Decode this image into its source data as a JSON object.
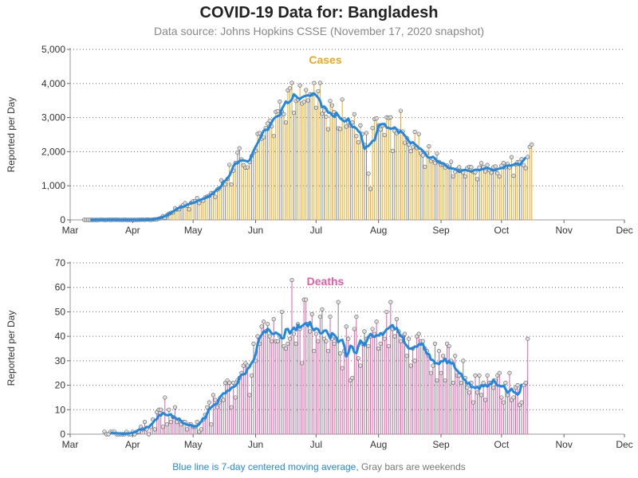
{
  "title": "COVID-19 Data for: Bangladesh",
  "subtitle": "Data source: Johns Hopkins CSSE (November 17, 2020 snapshot)",
  "footnote": {
    "blue_text": "Blue line is 7-day centered moving average,",
    "gray_text": "Gray bars are weekends"
  },
  "colors": {
    "cases": "#f2a71b",
    "deaths": "#e85aa6",
    "weekend": "#888888",
    "moving_average": "#1e88e5",
    "marker_fill": "#dddddd"
  },
  "chart_data": [
    {
      "type": "bar",
      "panel_label": "Cases",
      "ylabel": "Reported per Day",
      "xlabel": "",
      "ylim": [
        0,
        5000
      ],
      "yticks": [
        0,
        1000,
        2000,
        3000,
        4000,
        5000
      ],
      "ytick_labels": [
        "0",
        "1,000",
        "2,000",
        "3,000",
        "4,000",
        "5,000"
      ],
      "xticks": [
        "Mar",
        "Apr",
        "May",
        "Jun",
        "Jul",
        "Aug",
        "Sep",
        "Oct",
        "Nov",
        "Dec"
      ],
      "date_range": [
        "2020-03-01",
        "2020-12-01"
      ],
      "grid": "horizontal-dotted",
      "series": [
        {
          "role": "daily",
          "start_date": "2020-03-08",
          "values": [
            3,
            0,
            0,
            0,
            0,
            0,
            0,
            2,
            4,
            4,
            0,
            0,
            7,
            0,
            6,
            3,
            6,
            3,
            2,
            0,
            6,
            0,
            0,
            1,
            0,
            0,
            2,
            3,
            6,
            9,
            2,
            13,
            9,
            0,
            11,
            17,
            18,
            35,
            54,
            112,
            58,
            139,
            182,
            209,
            219,
            341,
            306,
            312,
            390,
            434,
            492,
            414,
            309,
            503,
            549,
            552,
            641,
            497,
            571,
            564,
            665,
            688,
            706,
            790,
            786,
            674,
            887,
            930,
            1162,
            1034,
            1041,
            1202,
            1617,
            1041,
            1446,
            1674,
            1975,
            2101,
            1774,
            1606,
            1532,
            1541,
            1694,
            1873,
            1975,
            2029,
            2523,
            2545,
            2381,
            2423,
            2695,
            2828,
            2911,
            2743,
            2460,
            3171,
            3190,
            3471,
            3187,
            3099,
            2856,
            3803,
            3862,
            4019,
            3141,
            3489,
            3531,
            3946,
            3412,
            3462,
            3809,
            3504,
            3682,
            3682,
            4014,
            3288,
            3775,
            4019,
            3114,
            3201,
            3027,
            2661,
            3489,
            3360,
            3163,
            3099,
            2686,
            2666,
            3533,
            2949,
            2733,
            2856,
            2772,
            2856,
            3099,
            2459,
            2275,
            2772,
            2520,
            2199,
            2548,
            1356,
            908,
            2695,
            2958,
            2977,
            2772,
            2654,
            2766,
            2487,
            3009,
            2994,
            3009,
            2024,
            2611,
            2545,
            2611,
            3200,
            2595,
            2265,
            2401,
            2211,
            2015,
            2131,
            2582,
            2106,
            2519,
            1950,
            1892,
            1557,
            1959,
            2158,
            1724,
            1792,
            1666,
            1950,
            1701,
            1615,
            1636,
            1537,
            1593,
            1544,
            1705,
            1275,
            1406,
            1488,
            1545,
            1439,
            1383,
            1275,
            1520,
            1557,
            1545,
            1407,
            1396,
            1195,
            1540,
            1664,
            1548,
            1421,
            1610,
            1458,
            1384,
            1542,
            1568,
            1365,
            1275,
            1590,
            1672,
            1545,
            1640,
            1540,
            1840,
            1293,
            1624,
            1694,
            1700,
            1782,
            1605,
            1519,
            1845,
            2139,
            2212
          ]
        }
      ]
    },
    {
      "type": "bar",
      "panel_label": "Deaths",
      "ylabel": "Reported per Day",
      "xlabel": "",
      "ylim": [
        0,
        70
      ],
      "yticks": [
        0,
        10,
        20,
        30,
        40,
        50,
        60,
        70
      ],
      "ytick_labels": [
        "0",
        "10",
        "20",
        "30",
        "40",
        "50",
        "60",
        "70"
      ],
      "xticks": [
        "Mar",
        "Apr",
        "May",
        "Jun",
        "Jul",
        "Aug",
        "Sep",
        "Oct",
        "Nov",
        "Dec"
      ],
      "date_range": [
        "2020-03-01",
        "2020-12-01"
      ],
      "grid": "horizontal-dotted",
      "series": [
        {
          "role": "daily",
          "start_date": "2020-03-18",
          "values": [
            1,
            0,
            0,
            1,
            1,
            1,
            0,
            0,
            0,
            0,
            0,
            1,
            0,
            0,
            1,
            0,
            1,
            1,
            3,
            2,
            5,
            2,
            0,
            3,
            6,
            2,
            9,
            10,
            10,
            3,
            15,
            4,
            10,
            5,
            7,
            11,
            5,
            6,
            4,
            5,
            5,
            2,
            4,
            4,
            3,
            3,
            5,
            1,
            2,
            6,
            8,
            11,
            13,
            4,
            16,
            14,
            11,
            13,
            15,
            14,
            21,
            22,
            21,
            11,
            21,
            15,
            22,
            23,
            25,
            28,
            29,
            28,
            16,
            24,
            37,
            30,
            40,
            37,
            44,
            46,
            42,
            45,
            40,
            38,
            47,
            38,
            38,
            40,
            50,
            36,
            35,
            37,
            39,
            63,
            41,
            37,
            45,
            43,
            29,
            55,
            55,
            45,
            42,
            49,
            34,
            41,
            38,
            48,
            51,
            39,
            38,
            34,
            48,
            39,
            37,
            39,
            54,
            33,
            27,
            34,
            44,
            39,
            22,
            23,
            43,
            48,
            31,
            28,
            37,
            42,
            39,
            36,
            40,
            43,
            41,
            46,
            35,
            37,
            41,
            39,
            50,
            36,
            54,
            43,
            40,
            47,
            42,
            38,
            40,
            41,
            32,
            39,
            28,
            35,
            30,
            40,
            41,
            38,
            38,
            35,
            34,
            32,
            25,
            28,
            37,
            22,
            34,
            25,
            32,
            22,
            37,
            36,
            30,
            21,
            32,
            24,
            24,
            21,
            30,
            23,
            19,
            17,
            21,
            13,
            24,
            17,
            24,
            16,
            21,
            14,
            24,
            21,
            21,
            19,
            22,
            24,
            25,
            15,
            13,
            21,
            16,
            25,
            14,
            15,
            19,
            20,
            12,
            13,
            20,
            21,
            39
          ]
        }
      ]
    }
  ]
}
